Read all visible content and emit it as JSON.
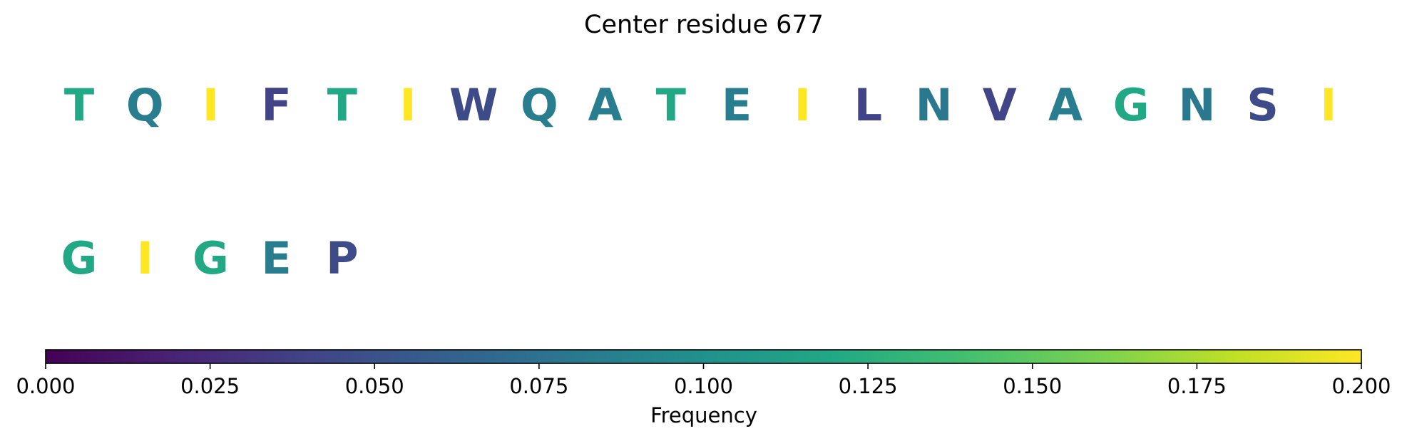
{
  "chart_data": {
    "type": "heatmap",
    "title": "Center residue 677",
    "rows": [
      [
        {
          "letter": "T",
          "value": 0.12
        },
        {
          "letter": "Q",
          "value": 0.085
        },
        {
          "letter": "I",
          "value": 0.2
        },
        {
          "letter": "F",
          "value": 0.04
        },
        {
          "letter": "T",
          "value": 0.12
        },
        {
          "letter": "I",
          "value": 0.2
        },
        {
          "letter": "W",
          "value": 0.045
        },
        {
          "letter": "Q",
          "value": 0.085
        },
        {
          "letter": "A",
          "value": 0.085
        },
        {
          "letter": "T",
          "value": 0.12
        },
        {
          "letter": "E",
          "value": 0.085
        },
        {
          "letter": "I",
          "value": 0.2
        },
        {
          "letter": "L",
          "value": 0.04
        },
        {
          "letter": "N",
          "value": 0.08
        },
        {
          "letter": "V",
          "value": 0.04
        },
        {
          "letter": "A",
          "value": 0.085
        },
        {
          "letter": "G",
          "value": 0.12
        },
        {
          "letter": "N",
          "value": 0.08
        },
        {
          "letter": "S",
          "value": 0.045
        },
        {
          "letter": "I",
          "value": 0.2
        }
      ],
      [
        {
          "letter": "G",
          "value": 0.12
        },
        {
          "letter": "I",
          "value": 0.2
        },
        {
          "letter": "G",
          "value": 0.12
        },
        {
          "letter": "E",
          "value": 0.085
        },
        {
          "letter": "P",
          "value": 0.045
        }
      ]
    ],
    "colorbar": {
      "label": "Frequency",
      "range": [
        0,
        0.2
      ],
      "colormap": "viridis",
      "ticks": [
        "0.000",
        "0.025",
        "0.050",
        "0.075",
        "0.100",
        "0.125",
        "0.150",
        "0.175",
        "0.200"
      ]
    }
  }
}
